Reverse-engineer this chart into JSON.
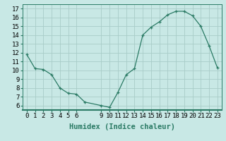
{
  "x": [
    0,
    1,
    2,
    3,
    4,
    5,
    6,
    7,
    9,
    10,
    11,
    12,
    13,
    14,
    15,
    16,
    17,
    18,
    19,
    20,
    21,
    22,
    23
  ],
  "y": [
    11.8,
    10.2,
    10.1,
    9.5,
    8.0,
    7.4,
    7.3,
    6.4,
    6.0,
    5.8,
    7.5,
    9.5,
    10.2,
    14.0,
    14.9,
    15.5,
    16.3,
    16.7,
    16.7,
    16.2,
    15.0,
    12.8,
    10.3
  ],
  "line_color": "#2a7a64",
  "marker": "+",
  "bg_color": "#c8e8e5",
  "grid_color": "#a8ccc8",
  "xlabel": "Humidex (Indice chaleur)",
  "xlabel_fontsize": 7.5,
  "yticks": [
    6,
    7,
    8,
    9,
    10,
    11,
    12,
    13,
    14,
    15,
    16,
    17
  ],
  "xticks": [
    0,
    1,
    2,
    3,
    4,
    5,
    6,
    9,
    10,
    11,
    12,
    13,
    14,
    15,
    16,
    17,
    18,
    19,
    20,
    21,
    22,
    23
  ],
  "ylim": [
    5.5,
    17.5
  ],
  "xlim": [
    -0.5,
    23.5
  ],
  "tick_fontsize": 6.5,
  "title": ""
}
